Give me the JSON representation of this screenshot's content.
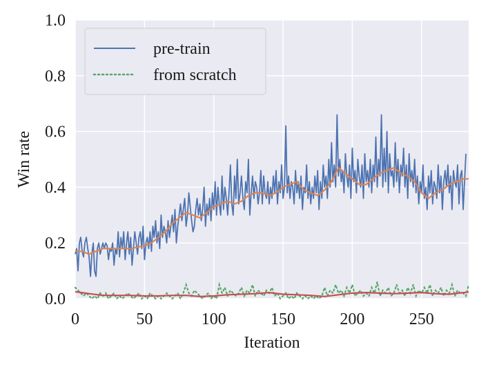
{
  "chart_data": {
    "type": "line",
    "xlabel": "Iteration",
    "ylabel": "Win rate",
    "xlim": [
      0,
      284
    ],
    "ylim": [
      0,
      1.0
    ],
    "x_ticks": [
      0,
      50,
      100,
      150,
      200,
      250
    ],
    "y_ticks": [
      "0.0",
      "0.2",
      "0.4",
      "0.6",
      "0.8",
      "1.0"
    ],
    "grid": true,
    "legend_position": "upper-left",
    "legend": [
      {
        "label": "pre-train",
        "style": "solid",
        "color": "#4c72b0"
      },
      {
        "label": "from scratch",
        "style": "dotted",
        "color": "#55a868"
      }
    ],
    "pretrain": {
      "name": "pre-train",
      "color": "#4c72b0",
      "x_start": 0,
      "x_step": 1,
      "values": [
        0.16,
        0.18,
        0.1,
        0.2,
        0.22,
        0.17,
        0.15,
        0.2,
        0.22,
        0.18,
        0.15,
        0.08,
        0.16,
        0.2,
        0.1,
        0.08,
        0.18,
        0.2,
        0.16,
        0.18,
        0.2,
        0.18,
        0.2,
        0.19,
        0.14,
        0.18,
        0.17,
        0.2,
        0.12,
        0.18,
        0.16,
        0.24,
        0.15,
        0.22,
        0.18,
        0.24,
        0.14,
        0.2,
        0.24,
        0.16,
        0.22,
        0.12,
        0.18,
        0.24,
        0.2,
        0.16,
        0.22,
        0.24,
        0.18,
        0.26,
        0.14,
        0.2,
        0.22,
        0.18,
        0.24,
        0.17,
        0.26,
        0.22,
        0.28,
        0.2,
        0.24,
        0.18,
        0.3,
        0.22,
        0.26,
        0.24,
        0.2,
        0.28,
        0.22,
        0.26,
        0.3,
        0.24,
        0.32,
        0.2,
        0.26,
        0.3,
        0.34,
        0.28,
        0.32,
        0.36,
        0.26,
        0.3,
        0.38,
        0.33,
        0.28,
        0.24,
        0.26,
        0.32,
        0.36,
        0.3,
        0.34,
        0.28,
        0.32,
        0.4,
        0.26,
        0.34,
        0.3,
        0.36,
        0.28,
        0.38,
        0.32,
        0.42,
        0.3,
        0.4,
        0.34,
        0.3,
        0.44,
        0.32,
        0.4,
        0.36,
        0.3,
        0.38,
        0.48,
        0.34,
        0.3,
        0.44,
        0.36,
        0.5,
        0.34,
        0.38,
        0.44,
        0.36,
        0.32,
        0.42,
        0.38,
        0.5,
        0.3,
        0.38,
        0.44,
        0.36,
        0.42,
        0.4,
        0.34,
        0.38,
        0.46,
        0.34,
        0.44,
        0.38,
        0.36,
        0.42,
        0.34,
        0.4,
        0.36,
        0.44,
        0.38,
        0.46,
        0.34,
        0.42,
        0.38,
        0.48,
        0.36,
        0.4,
        0.62,
        0.38,
        0.44,
        0.36,
        0.42,
        0.4,
        0.34,
        0.46,
        0.38,
        0.42,
        0.36,
        0.44,
        0.32,
        0.4,
        0.38,
        0.48,
        0.36,
        0.42,
        0.34,
        0.4,
        0.36,
        0.44,
        0.38,
        0.46,
        0.32,
        0.42,
        0.36,
        0.48,
        0.4,
        0.44,
        0.36,
        0.5,
        0.4,
        0.56,
        0.42,
        0.48,
        0.4,
        0.66,
        0.44,
        0.5,
        0.42,
        0.46,
        0.38,
        0.52,
        0.44,
        0.4,
        0.48,
        0.36,
        0.54,
        0.42,
        0.46,
        0.38,
        0.5,
        0.44,
        0.4,
        0.48,
        0.36,
        0.52,
        0.42,
        0.46,
        0.4,
        0.5,
        0.38,
        0.48,
        0.42,
        0.58,
        0.4,
        0.5,
        0.44,
        0.66,
        0.4,
        0.54,
        0.42,
        0.6,
        0.38,
        0.52,
        0.44,
        0.46,
        0.4,
        0.56,
        0.42,
        0.5,
        0.38,
        0.48,
        0.44,
        0.54,
        0.4,
        0.48,
        0.36,
        0.52,
        0.42,
        0.46,
        0.4,
        0.5,
        0.38,
        0.44,
        0.34,
        0.42,
        0.38,
        0.48,
        0.36,
        0.4,
        0.32,
        0.44,
        0.38,
        0.46,
        0.34,
        0.42,
        0.4,
        0.36,
        0.48,
        0.38,
        0.44,
        0.32,
        0.42,
        0.46,
        0.4,
        0.48,
        0.38,
        0.44,
        0.32,
        0.46,
        0.42,
        0.4,
        0.48,
        0.34,
        0.44,
        0.46,
        0.32,
        0.42,
        0.52
      ]
    },
    "pretrain_smoothed": {
      "color": "#dd8452",
      "points": [
        [
          0,
          0.17
        ],
        [
          5,
          0.17
        ],
        [
          10,
          0.16
        ],
        [
          15,
          0.17
        ],
        [
          20,
          0.18
        ],
        [
          30,
          0.18
        ],
        [
          40,
          0.18
        ],
        [
          50,
          0.19
        ],
        [
          55,
          0.2
        ],
        [
          60,
          0.22
        ],
        [
          65,
          0.24
        ],
        [
          70,
          0.27
        ],
        [
          75,
          0.29
        ],
        [
          80,
          0.31
        ],
        [
          85,
          0.3
        ],
        [
          90,
          0.29
        ],
        [
          95,
          0.31
        ],
        [
          100,
          0.33
        ],
        [
          105,
          0.34
        ],
        [
          110,
          0.35
        ],
        [
          115,
          0.34
        ],
        [
          120,
          0.35
        ],
        [
          125,
          0.37
        ],
        [
          130,
          0.38
        ],
        [
          135,
          0.38
        ],
        [
          140,
          0.37
        ],
        [
          145,
          0.38
        ],
        [
          150,
          0.4
        ],
        [
          155,
          0.41
        ],
        [
          160,
          0.42
        ],
        [
          165,
          0.39
        ],
        [
          170,
          0.38
        ],
        [
          175,
          0.37
        ],
        [
          180,
          0.39
        ],
        [
          185,
          0.42
        ],
        [
          190,
          0.47
        ],
        [
          195,
          0.45
        ],
        [
          200,
          0.43
        ],
        [
          205,
          0.41
        ],
        [
          210,
          0.41
        ],
        [
          215,
          0.43
        ],
        [
          220,
          0.45
        ],
        [
          225,
          0.46
        ],
        [
          230,
          0.47
        ],
        [
          235,
          0.45
        ],
        [
          240,
          0.44
        ],
        [
          245,
          0.42
        ],
        [
          250,
          0.38
        ],
        [
          255,
          0.36
        ],
        [
          260,
          0.38
        ],
        [
          265,
          0.39
        ],
        [
          270,
          0.41
        ],
        [
          275,
          0.42
        ],
        [
          280,
          0.43
        ],
        [
          284,
          0.43
        ]
      ]
    },
    "scratch": {
      "name": "from scratch",
      "color": "#55a868",
      "x_start": 0,
      "x_step": 2,
      "values": [
        0.04,
        0.03,
        0.02,
        0.01,
        0.02,
        0.01,
        0.0,
        0.01,
        0.0,
        0.02,
        0.01,
        0.02,
        0.0,
        0.01,
        0.02,
        0.0,
        0.01,
        0.0,
        0.01,
        0.02,
        0.01,
        0.0,
        0.01,
        0.02,
        0.0,
        0.01,
        0.0,
        0.02,
        0.01,
        0.0,
        0.01,
        0.0,
        0.01,
        0.02,
        0.01,
        0.0,
        0.01,
        0.02,
        0.0,
        0.02,
        0.05,
        0.02,
        0.01,
        0.03,
        0.02,
        0.01,
        0.0,
        0.01,
        0.02,
        0.0,
        0.01,
        0.0,
        0.05,
        0.02,
        0.04,
        0.01,
        0.03,
        0.02,
        0.01,
        0.02,
        0.04,
        0.01,
        0.03,
        0.02,
        0.05,
        0.01,
        0.03,
        0.02,
        0.01,
        0.03,
        0.02,
        0.04,
        0.01,
        0.02,
        0.0,
        0.01,
        0.02,
        0.0,
        0.01,
        0.0,
        0.02,
        0.01,
        0.0,
        0.01,
        0.0,
        0.01,
        0.0,
        0.01,
        0.0,
        0.01,
        0.04,
        0.01,
        0.03,
        0.02,
        0.05,
        0.02,
        0.03,
        0.01,
        0.04,
        0.02,
        0.05,
        0.01,
        0.02,
        0.03,
        0.01,
        0.02,
        0.01,
        0.04,
        0.02,
        0.06,
        0.01,
        0.03,
        0.02,
        0.04,
        0.01,
        0.02,
        0.05,
        0.02,
        0.03,
        0.01,
        0.04,
        0.02,
        0.05,
        0.01,
        0.03,
        0.02,
        0.04,
        0.02,
        0.05,
        0.01,
        0.03,
        0.02,
        0.04,
        0.01,
        0.03,
        0.02,
        0.05,
        0.01,
        0.03,
        0.02,
        0.02,
        0.01,
        0.05
      ]
    },
    "scratch_smoothed": {
      "color": "#c44e52",
      "points": [
        [
          0,
          0.025
        ],
        [
          10,
          0.018
        ],
        [
          20,
          0.012
        ],
        [
          30,
          0.012
        ],
        [
          40,
          0.012
        ],
        [
          50,
          0.01
        ],
        [
          60,
          0.01
        ],
        [
          70,
          0.012
        ],
        [
          80,
          0.012
        ],
        [
          90,
          0.008
        ],
        [
          100,
          0.01
        ],
        [
          110,
          0.014
        ],
        [
          120,
          0.016
        ],
        [
          130,
          0.018
        ],
        [
          140,
          0.022
        ],
        [
          150,
          0.016
        ],
        [
          160,
          0.014
        ],
        [
          170,
          0.012
        ],
        [
          180,
          0.008
        ],
        [
          190,
          0.014
        ],
        [
          200,
          0.02
        ],
        [
          210,
          0.022
        ],
        [
          220,
          0.02
        ],
        [
          230,
          0.018
        ],
        [
          240,
          0.02
        ],
        [
          250,
          0.022
        ],
        [
          260,
          0.018
        ],
        [
          270,
          0.016
        ],
        [
          284,
          0.024
        ]
      ]
    }
  }
}
